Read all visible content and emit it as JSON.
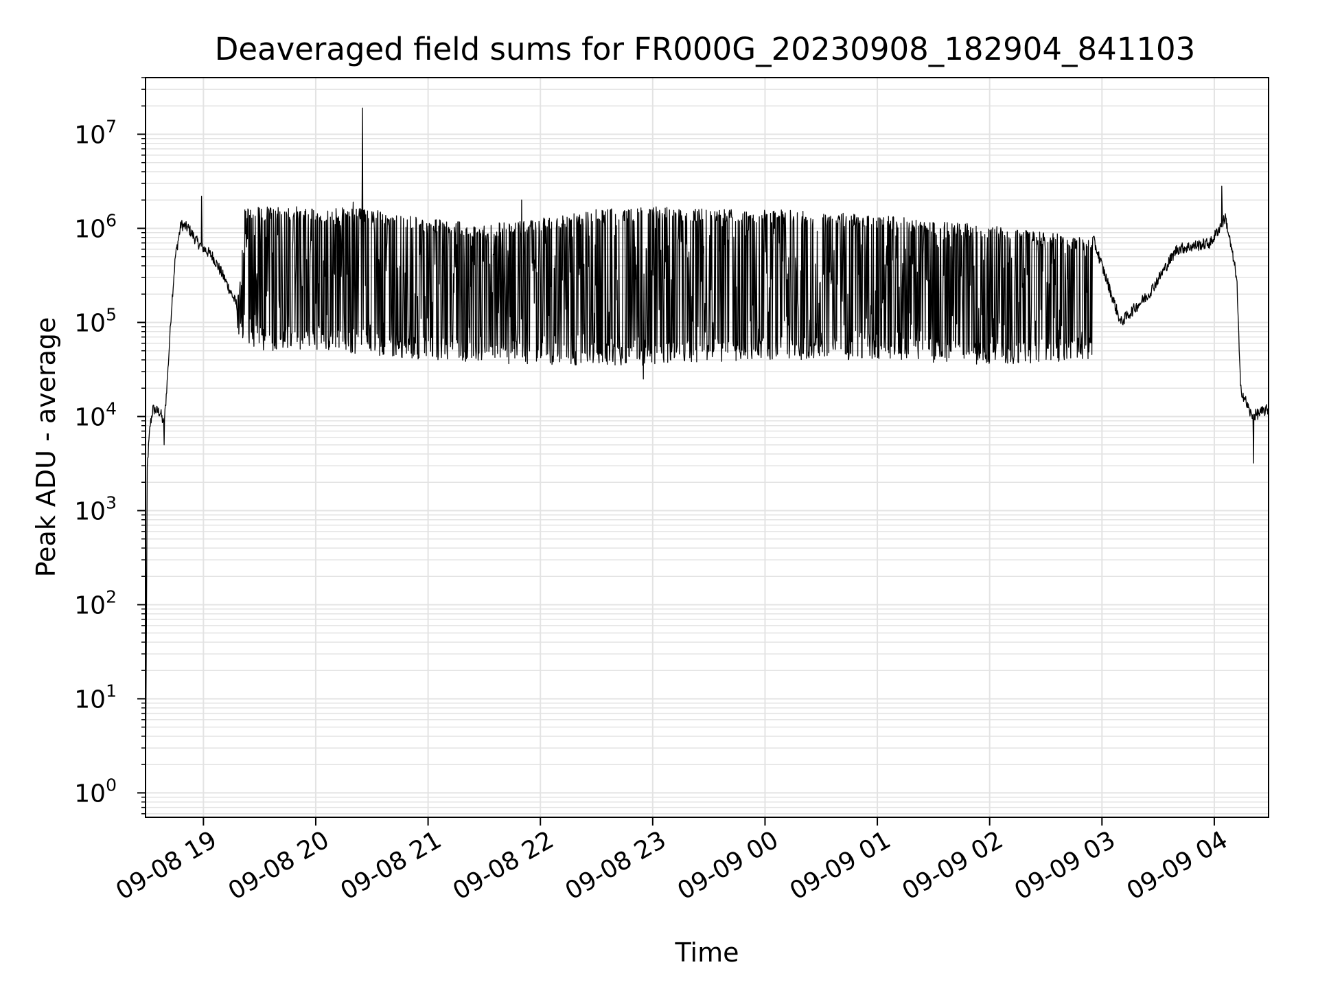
{
  "chart_data": {
    "type": "line",
    "title": "Deaveraged field sums for FR000G_20230908_182904_841103",
    "xlabel": "Time",
    "ylabel": "Peak ADU - average",
    "yscale": "log",
    "ylim": [
      0.55,
      40000000
    ],
    "xlim": [
      "2023-09-08T18:29:04",
      "2023-09-09T04:29:00"
    ],
    "grid": true,
    "line_color": "#000000",
    "grid_color": "#e3e3e3",
    "x_ticks": [
      {
        "label": "09-08 19",
        "time": "2023-09-08T19:00:00"
      },
      {
        "label": "09-08 20",
        "time": "2023-09-08T20:00:00"
      },
      {
        "label": "09-08 21",
        "time": "2023-09-08T21:00:00"
      },
      {
        "label": "09-08 22",
        "time": "2023-09-08T22:00:00"
      },
      {
        "label": "09-08 23",
        "time": "2023-09-08T23:00:00"
      },
      {
        "label": "09-09 00",
        "time": "2023-09-09T00:00:00"
      },
      {
        "label": "09-09 01",
        "time": "2023-09-09T01:00:00"
      },
      {
        "label": "09-09 02",
        "time": "2023-09-09T02:00:00"
      },
      {
        "label": "09-09 03",
        "time": "2023-09-09T03:00:00"
      },
      {
        "label": "09-09 04",
        "time": "2023-09-09T04:00:00"
      }
    ],
    "y_ticks": [
      {
        "base": "10",
        "exp": "0",
        "value": 1
      },
      {
        "base": "10",
        "exp": "1",
        "value": 10
      },
      {
        "base": "10",
        "exp": "2",
        "value": 100
      },
      {
        "base": "10",
        "exp": "3",
        "value": 1000
      },
      {
        "base": "10",
        "exp": "4",
        "value": 10000
      },
      {
        "base": "10",
        "exp": "5",
        "value": 100000
      },
      {
        "base": "10",
        "exp": "6",
        "value": 1000000
      },
      {
        "base": "10",
        "exp": "7",
        "value": 10000000
      }
    ],
    "series": [
      {
        "envelope_upper": [
          [
            "2023-09-08T18:29:04",
            1
          ],
          [
            "2023-09-08T18:30:00",
            3000
          ],
          [
            "2023-09-08T18:31:30",
            8000
          ],
          [
            "2023-09-08T18:33:00",
            12000
          ],
          [
            "2023-09-08T18:37:00",
            11000
          ],
          [
            "2023-09-08T18:39:00",
            8000
          ],
          [
            "2023-09-08T18:41:00",
            30000
          ],
          [
            "2023-09-08T18:43:00",
            150000
          ],
          [
            "2023-09-08T18:45:00",
            500000
          ],
          [
            "2023-09-08T18:48:00",
            1100000
          ],
          [
            "2023-09-08T18:52:00",
            1000000
          ],
          [
            "2023-09-08T18:57:00",
            700000
          ],
          [
            "2023-09-08T19:05:00",
            500000
          ],
          [
            "2023-09-08T19:11:00",
            300000
          ],
          [
            "2023-09-08T19:18:00",
            150000
          ],
          [
            "2023-09-08T19:22:00",
            1700000
          ],
          [
            "2023-09-08T20:00:00",
            1700000
          ],
          [
            "2023-09-08T20:30:00",
            1600000
          ],
          [
            "2023-09-08T21:00:00",
            1300000
          ],
          [
            "2023-09-08T21:30:00",
            1100000
          ],
          [
            "2023-09-08T22:00:00",
            1300000
          ],
          [
            "2023-09-08T22:30:00",
            1600000
          ],
          [
            "2023-09-08T23:00:00",
            1700000
          ],
          [
            "2023-09-09T00:00:00",
            1600000
          ],
          [
            "2023-09-09T01:00:00",
            1400000
          ],
          [
            "2023-09-09T01:30:00",
            1200000
          ],
          [
            "2023-09-09T02:00:00",
            1100000
          ],
          [
            "2023-09-09T02:30:00",
            900000
          ],
          [
            "2023-09-09T02:55:00",
            800000
          ],
          [
            "2023-09-09T03:10:00",
            100000
          ],
          [
            "2023-09-09T03:25:00",
            200000
          ],
          [
            "2023-09-09T03:40:00",
            600000
          ],
          [
            "2023-09-09T03:58:00",
            700000
          ],
          [
            "2023-09-09T04:06:00",
            1300000
          ],
          [
            "2023-09-09T04:12:00",
            300000
          ],
          [
            "2023-09-09T04:14:00",
            20000
          ],
          [
            "2023-09-09T04:20:00",
            10000
          ],
          [
            "2023-09-09T04:29:00",
            12000
          ]
        ],
        "envelope_lower": [
          [
            "2023-09-08T19:18:00",
            70000
          ],
          [
            "2023-09-08T19:30:00",
            50000
          ],
          [
            "2023-09-08T20:00:00",
            50000
          ],
          [
            "2023-09-08T21:00:00",
            40000
          ],
          [
            "2023-09-08T22:00:00",
            35000
          ],
          [
            "2023-09-08T23:00:00",
            35000
          ],
          [
            "2023-09-09T00:00:00",
            40000
          ],
          [
            "2023-09-09T01:00:00",
            40000
          ],
          [
            "2023-09-09T02:00:00",
            35000
          ],
          [
            "2023-09-09T02:55:00",
            40000
          ]
        ],
        "spikes": [
          [
            "2023-09-08T18:59:00",
            2200000
          ],
          [
            "2023-09-08T20:20:00",
            1900000
          ],
          [
            "2023-09-08T20:25:00",
            19000000
          ],
          [
            "2023-09-08T21:50:00",
            2000000
          ],
          [
            "2023-09-09T04:04:00",
            2800000
          ]
        ],
        "dips": [
          [
            "2023-09-08T18:39:00",
            5000
          ],
          [
            "2023-09-08T22:55:00",
            25000
          ],
          [
            "2023-09-09T04:21:00",
            3200
          ]
        ]
      }
    ]
  }
}
